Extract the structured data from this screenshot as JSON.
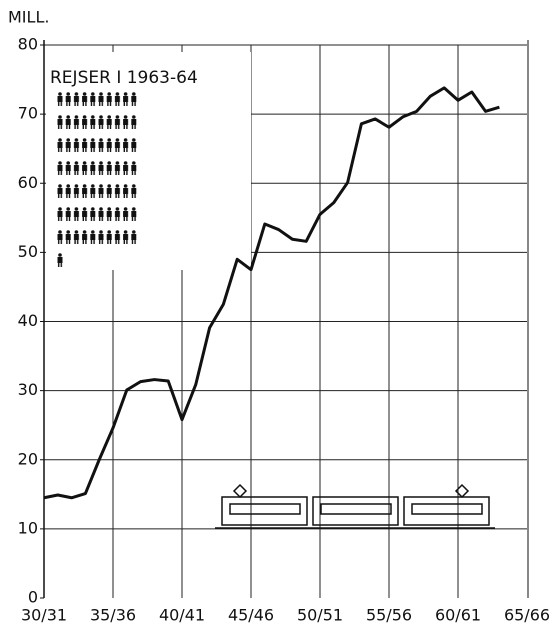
{
  "chart_data": {
    "type": "line",
    "y_axis_label": "MILL.",
    "annotation": "REJSER I 1963-64",
    "categories": [
      "30/31",
      null,
      null,
      null,
      null,
      "35/36",
      null,
      null,
      null,
      null,
      "40/41",
      null,
      null,
      null,
      null,
      "45/46",
      null,
      null,
      null,
      null,
      "50/51",
      null,
      null,
      null,
      null,
      "55/56",
      null,
      null,
      null,
      null,
      "60/61",
      null,
      null,
      null,
      null,
      "65/66"
    ],
    "values": [
      14.5,
      14.9,
      14.5,
      15.1,
      20,
      24.6,
      30.1,
      31.3,
      31.6,
      31.4,
      25.8,
      30.9,
      39.1,
      42.5,
      49.0,
      47.5,
      54.1,
      53.3,
      51.9,
      51.6,
      55.5,
      57.2,
      60.1,
      68.6,
      69.3,
      68.1,
      69.6,
      70.4,
      72.6,
      73.8,
      72.0,
      73.2,
      70.4,
      71.0,
      null,
      null
    ],
    "color": "#111111",
    "ylim": [
      0,
      80
    ],
    "yticks": [
      0,
      10,
      20,
      30,
      40,
      50,
      60,
      70,
      80
    ],
    "grid": true
  }
}
